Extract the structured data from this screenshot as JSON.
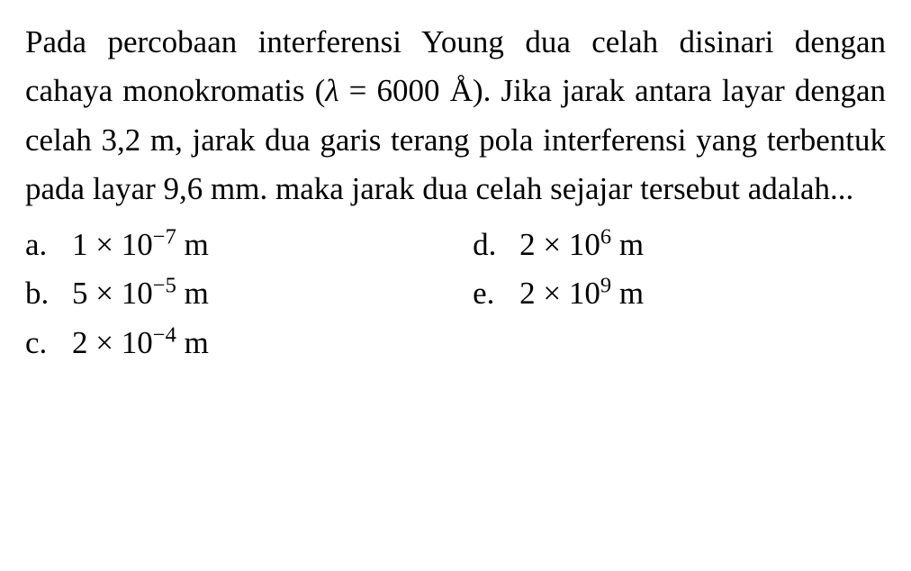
{
  "question": {
    "text_parts": {
      "p1": "Pada percobaan interferensi Young dua celah disinari dengan cahaya monokromatis (",
      "lambda": "λ",
      "equals": " =",
      "value": "6000 Å",
      "p2": "). Jika jarak antara layar dengan celah 3,2 m, jarak dua garis terang pola interferensi yang terbentuk pada layar 9,6 mm. maka jarak dua celah sejajar tersebut adalah..."
    }
  },
  "options": {
    "a": {
      "letter": "a.",
      "coeff": "1 × 10",
      "exp": "−7",
      "unit": " m"
    },
    "b": {
      "letter": "b.",
      "coeff": "5 × 10",
      "exp": "−5",
      "unit": " m"
    },
    "c": {
      "letter": "c.",
      "coeff": "2 × 10",
      "exp": "−4",
      "unit": " m"
    },
    "d": {
      "letter": "d.",
      "coeff": "2 × 10",
      "exp": "6",
      "unit": " m"
    },
    "e": {
      "letter": "e.",
      "coeff": "2 × 10",
      "exp": "9",
      "unit": " m"
    }
  },
  "style": {
    "font_family": "Times New Roman",
    "font_size_pt": 26,
    "text_color": "#000000",
    "background_color": "#ffffff",
    "line_height": 1.55
  }
}
